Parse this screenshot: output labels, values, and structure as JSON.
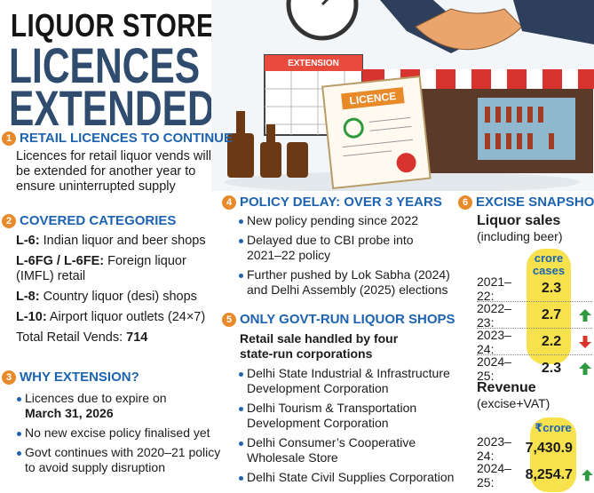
{
  "header": {
    "title": [
      "LIQUOR STORE",
      "LICENCES",
      "EXTENDED"
    ]
  },
  "illustration": {
    "document": "LICENCE",
    "calendar": "EXTENSION"
  },
  "retail": {
    "number": 1,
    "heading": "RETAIL LICENCES TO CONTINUE",
    "text": "Licences for retail liquor vends will be extended for another year to ensure uninterrupted supply"
  },
  "categories": {
    "number": 2,
    "heading": "COVERED CATEGORIES",
    "items": [
      {
        "code": "L-6:",
        "text": "Indian liquor and beer shops"
      },
      {
        "code": "L-6FG / L-6FE:",
        "text": "Foreign liquor (IMFL) retail"
      },
      {
        "code": "L-8:",
        "text": "Country liquor (desi) shops"
      },
      {
        "code": "L-10:",
        "text": "Airport liquor outlets (24×7)"
      }
    ],
    "total": {
      "label": "Total Retail Vends:",
      "value": 714
    }
  },
  "why": {
    "number": 3,
    "heading": "WHY EXTENSION?",
    "bullets": [
      {
        "text": "Licences due to expire on",
        "bold": "March 31, 2026"
      },
      {
        "text": "No new excise policy finalised yet"
      },
      {
        "text": "Govt continues with 2020–21 policy to avoid supply disruption"
      }
    ]
  },
  "delay": {
    "number": 4,
    "heading": "POLICY DELAY: OVER 3 YEARS",
    "bullets": [
      "New policy pending since 2022",
      "Delayed due to CBI probe into 2021–22 policy",
      "Further pushed by Lok Sabha (2024) and Delhi Assembly (2025) elections"
    ]
  },
  "govt": {
    "number": 5,
    "heading": "ONLY GOVT-RUN LIQUOR SHOPS",
    "subheading": "Retail sale handled by four state-run corporations",
    "bullets": [
      "Delhi State Industrial & Infrastructure Development Corporation",
      "Delhi Tourism & Transportation Development Corporation",
      "Delhi Consumer’s Cooperative Wholesale Store",
      "Delhi State Civil Supplies Corporation"
    ]
  },
  "snapshot": {
    "number": 6,
    "heading": "EXCISE SNAPSHOT",
    "sales": {
      "title": "Liquor sales",
      "subtitle": "(including beer)",
      "unit": "crore cases",
      "rows": [
        {
          "year": "2021–22:",
          "value": 2.3
        },
        {
          "year": "2022–23:",
          "value": 2.7,
          "trend": "up"
        },
        {
          "year": "2023–24:",
          "value": 2.2,
          "trend": "down"
        },
        {
          "year": "2024–25:",
          "value": 2.3,
          "trend": "up"
        }
      ]
    },
    "revenue": {
      "title": "Revenue",
      "subtitle": "(excise+VAT)",
      "unit": "₹crore",
      "rows": [
        {
          "year": "2023–24:",
          "value": {
            "value": 7430.9,
            "label": "7,430.9"
          }
        },
        {
          "year": "2024–25:",
          "value": {
            "value": 8254.7,
            "label": "8,254.7"
          },
          "trend": "up"
        }
      ]
    }
  }
}
